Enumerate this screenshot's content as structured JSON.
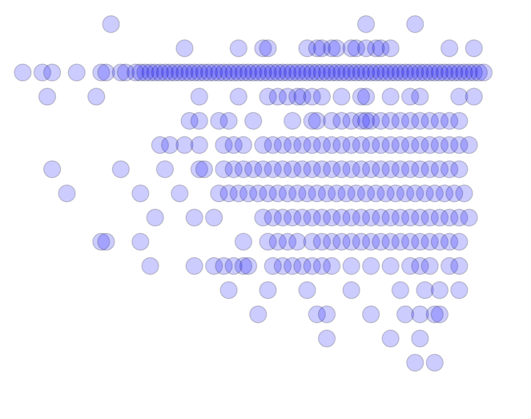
{
  "chart_data": {
    "type": "scatter",
    "title": "",
    "xlabel": "",
    "ylabel": "",
    "axes_visible": false,
    "grid": false,
    "legend": "none",
    "xlim": [
      0.0,
      1.05
    ],
    "ylim": [
      -0.5,
      15.5
    ],
    "marker": {
      "shape": "circle",
      "fill": "#0000ff",
      "fill_alpha": 0.2,
      "edge": "#000000",
      "edge_alpha": 0.2
    },
    "rows": [
      {
        "y": 15,
        "x": [
          0.21,
          0.73,
          0.83
        ]
      },
      {
        "y": 14,
        "x": [
          0.36,
          0.47,
          0.52,
          0.53,
          0.61,
          0.63,
          0.64,
          0.66,
          0.67,
          0.7,
          0.71,
          0.73,
          0.75,
          0.76,
          0.78,
          0.9,
          0.95
        ]
      },
      {
        "y": 13,
        "x": [
          0.03,
          0.07,
          0.09,
          0.14,
          0.19,
          0.2,
          0.23,
          0.24,
          0.26,
          0.27,
          0.28,
          0.29,
          0.3,
          0.31,
          0.32,
          0.33,
          0.34,
          0.35,
          0.36,
          0.37,
          0.38,
          0.39,
          0.4,
          0.41,
          0.42,
          0.43,
          0.44,
          0.45,
          0.46,
          0.47,
          0.48,
          0.49,
          0.5,
          0.51,
          0.52,
          0.53,
          0.54,
          0.55,
          0.56,
          0.57,
          0.58,
          0.59,
          0.6,
          0.61,
          0.62,
          0.63,
          0.64,
          0.65,
          0.66,
          0.67,
          0.68,
          0.69,
          0.7,
          0.71,
          0.72,
          0.73,
          0.74,
          0.75,
          0.76,
          0.77,
          0.78,
          0.79,
          0.8,
          0.81,
          0.82,
          0.83,
          0.84,
          0.85,
          0.86,
          0.87,
          0.88,
          0.89,
          0.9,
          0.91,
          0.92,
          0.93,
          0.94,
          0.95,
          0.96,
          0.97
        ]
      },
      {
        "y": 12,
        "x": [
          0.08,
          0.18,
          0.39,
          0.47,
          0.53,
          0.55,
          0.57,
          0.59,
          0.6,
          0.62,
          0.64,
          0.68,
          0.72,
          0.73,
          0.78,
          0.82,
          0.84,
          0.92,
          0.95
        ]
      },
      {
        "y": 11,
        "x": [
          0.37,
          0.39,
          0.43,
          0.45,
          0.5,
          0.58,
          0.62,
          0.63,
          0.66,
          0.68,
          0.7,
          0.72,
          0.73,
          0.74,
          0.76,
          0.78,
          0.8,
          0.82,
          0.84,
          0.86,
          0.88,
          0.9,
          0.92
        ]
      },
      {
        "y": 10,
        "x": [
          0.31,
          0.33,
          0.36,
          0.39,
          0.44,
          0.46,
          0.48,
          0.52,
          0.54,
          0.56,
          0.58,
          0.6,
          0.62,
          0.64,
          0.66,
          0.68,
          0.7,
          0.72,
          0.74,
          0.76,
          0.78,
          0.8,
          0.82,
          0.84,
          0.86,
          0.88,
          0.9,
          0.92,
          0.94
        ]
      },
      {
        "y": 9,
        "x": [
          0.09,
          0.23,
          0.32,
          0.39,
          0.4,
          0.44,
          0.46,
          0.48,
          0.5,
          0.52,
          0.54,
          0.56,
          0.58,
          0.6,
          0.62,
          0.64,
          0.66,
          0.68,
          0.7,
          0.72,
          0.74,
          0.76,
          0.78,
          0.8,
          0.82,
          0.84,
          0.86,
          0.88,
          0.9,
          0.92
        ]
      },
      {
        "y": 8,
        "x": [
          0.12,
          0.27,
          0.35,
          0.43,
          0.45,
          0.47,
          0.49,
          0.51,
          0.53,
          0.55,
          0.57,
          0.59,
          0.61,
          0.63,
          0.65,
          0.67,
          0.69,
          0.71,
          0.73,
          0.75,
          0.77,
          0.79,
          0.81,
          0.83,
          0.85,
          0.87,
          0.89,
          0.91,
          0.93
        ]
      },
      {
        "y": 7,
        "x": [
          0.3,
          0.38,
          0.42,
          0.52,
          0.54,
          0.56,
          0.58,
          0.6,
          0.62,
          0.64,
          0.66,
          0.68,
          0.7,
          0.72,
          0.74,
          0.76,
          0.78,
          0.8,
          0.82,
          0.84,
          0.86,
          0.88,
          0.9,
          0.92,
          0.94
        ]
      },
      {
        "y": 6,
        "x": [
          0.19,
          0.2,
          0.27,
          0.48,
          0.53,
          0.55,
          0.57,
          0.59,
          0.62,
          0.64,
          0.66,
          0.68,
          0.7,
          0.72,
          0.74,
          0.76,
          0.78,
          0.8,
          0.82,
          0.84,
          0.86,
          0.88,
          0.9,
          0.92
        ]
      },
      {
        "y": 5,
        "x": [
          0.29,
          0.38,
          0.42,
          0.44,
          0.46,
          0.48,
          0.49,
          0.54,
          0.56,
          0.58,
          0.6,
          0.62,
          0.64,
          0.66,
          0.7,
          0.74,
          0.78,
          0.82,
          0.84,
          0.86,
          0.9,
          0.92
        ]
      },
      {
        "y": 4,
        "x": [
          0.45,
          0.53,
          0.61,
          0.7,
          0.8,
          0.85,
          0.88,
          0.92
        ]
      },
      {
        "y": 3,
        "x": [
          0.51,
          0.63,
          0.65,
          0.74,
          0.81,
          0.84,
          0.87,
          0.88
        ]
      },
      {
        "y": 2,
        "x": [
          0.65,
          0.78,
          0.84
        ]
      },
      {
        "y": 1,
        "x": [
          0.83,
          0.87
        ]
      }
    ]
  }
}
